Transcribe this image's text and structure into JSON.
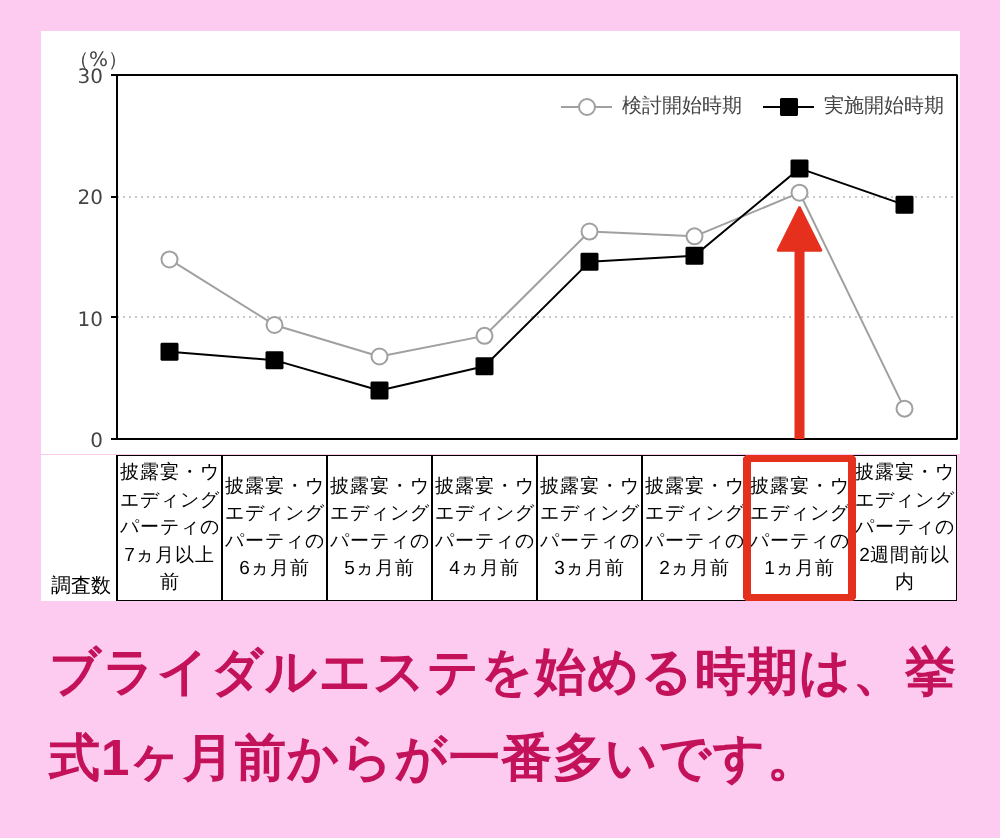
{
  "chart_data": {
    "type": "line",
    "ylabel": "（%）",
    "categories": [
      "披露宴・ウエディングパーティの7ヵ月以上前",
      "披露宴・ウエディングパーティの6ヵ月前",
      "披露宴・ウエディングパーティの5ヵ月前",
      "披露宴・ウエディングパーティの4ヵ月前",
      "披露宴・ウエディングパーティの3ヵ月前",
      "披露宴・ウエディングパーティの2ヵ月前",
      "披露宴・ウエディングパーティの1ヵ月前",
      "披露宴・ウエディングパーティの2週間前以内"
    ],
    "series": [
      {
        "name": "検討開始時期",
        "color": "#a0a0a0",
        "marker": "circle",
        "values": [
          14.8,
          9.4,
          6.8,
          8.5,
          17.1,
          16.7,
          20.3,
          2.5
        ]
      },
      {
        "name": "実施開始時期",
        "color": "#000000",
        "marker": "square",
        "values": [
          7.2,
          6.5,
          4.0,
          6.0,
          14.6,
          15.1,
          22.3,
          19.3
        ]
      }
    ],
    "ylim": [
      0,
      30
    ],
    "yticks": [
      0,
      10,
      20,
      30
    ],
    "grid": "y",
    "legend": "top right",
    "annotations": [
      "調査数",
      "ブライダルエステを始める時期は、挙式1ヶ月前からが一番多いです。"
    ]
  }
}
